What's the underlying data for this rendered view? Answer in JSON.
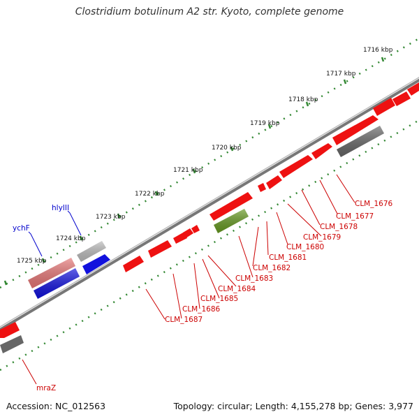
{
  "title": "Clostridium botulinum A2 str. Kyoto, complete genome",
  "footer": {
    "accession": "Accession: NC_012563",
    "summary": "Topology: circular; Length: 4,155,278 bp; Genes: 3,977"
  },
  "ruler_labels": [
    "1716 kbp",
    "1717 kbp",
    "1718 kbp",
    "1719 kbp",
    "1720 kbp",
    "1721 kbp",
    "1722 kbp",
    "1723 kbp",
    "1724 kbp",
    "1725 kbp"
  ],
  "gene_labels": [
    "hlyIII",
    "ychF",
    "CLM_1676",
    "CLM_1677",
    "CLM_1678",
    "CLM_1679",
    "CLM_1680",
    "CLM_1681",
    "CLM_1682",
    "CLM_1683",
    "CLM_1684",
    "CLM_1685",
    "CLM_1686",
    "CLM_1687",
    "mraZ"
  ],
  "colors": {
    "gene_red": "#ee1111",
    "pseudo_gray": "#666666",
    "blue": "#1111dd",
    "green": "#669922",
    "light_red": "#e77777",
    "light_gray": "#bbbbbb",
    "backbone": "#777777",
    "ruler_dots": "#338833",
    "label_red": "#cc0000",
    "label_blue": "#0000cc"
  }
}
